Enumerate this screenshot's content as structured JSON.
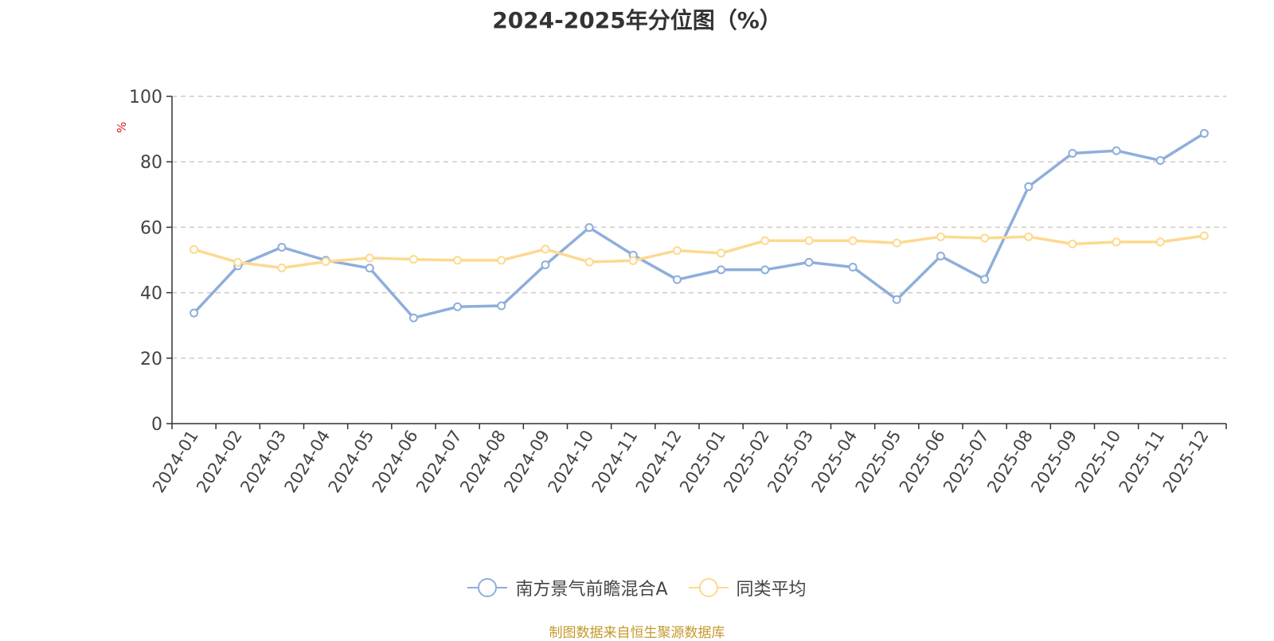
{
  "chart_data": {
    "type": "line",
    "title": "2024-2025年分位图（%）",
    "ylabel": "%",
    "ylim": [
      0,
      100
    ],
    "yticks": [
      0,
      20,
      40,
      60,
      80,
      100
    ],
    "grid": true,
    "legend_position": "bottom",
    "categories": [
      "2024-01",
      "2024-02",
      "2024-03",
      "2024-04",
      "2024-05",
      "2024-06",
      "2024-07",
      "2024-08",
      "2024-09",
      "2024-10",
      "2024-11",
      "2024-12",
      "2025-01",
      "2025-02",
      "2025-03",
      "2025-04",
      "2025-05",
      "2025-06",
      "2025-07",
      "2025-08",
      "2025-09",
      "2025-10",
      "2025-11",
      "2025-12"
    ],
    "series": [
      {
        "name": "南方景气前瞻混合A",
        "color": "#8eaedb",
        "values": [
          33.8,
          48.2,
          53.9,
          49.9,
          47.5,
          32.3,
          35.7,
          36.0,
          48.5,
          59.9,
          51.5,
          44.0,
          47.0,
          47.0,
          49.3,
          47.8,
          37.9,
          51.2,
          44.1,
          72.4,
          82.6,
          83.4,
          80.4,
          88.7
        ]
      },
      {
        "name": "同类平均",
        "color": "#fdd98f",
        "values": [
          53.2,
          49.3,
          47.6,
          49.5,
          50.6,
          50.2,
          49.9,
          49.9,
          53.3,
          49.4,
          49.8,
          52.9,
          52.1,
          55.9,
          55.9,
          55.9,
          55.2,
          57.1,
          56.7,
          57.1,
          54.9,
          55.5,
          55.5,
          57.4
        ]
      }
    ]
  },
  "source_text": "制图数据来自恒生聚源数据库"
}
